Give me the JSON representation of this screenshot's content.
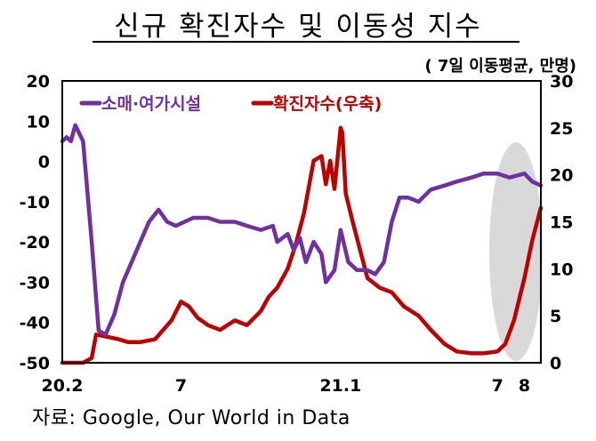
{
  "title": "신규 확진자수 및 이동성 지수",
  "unit_note": "( 7일 이동평균, 만명)",
  "source_note": "자료: Google, Our World in Data",
  "colors": {
    "mobility": "#7030A0",
    "cases": "#C00000",
    "highlight": "#D9D9D9"
  },
  "chart_data": {
    "type": "line",
    "x_tick_labels": [
      "20.2",
      "7",
      "21.1",
      "7",
      "8"
    ],
    "y_left": {
      "ticks": [
        "20",
        "10",
        "0",
        "-10",
        "-20",
        "-30",
        "-40",
        "-50"
      ],
      "range": [
        -50,
        20
      ]
    },
    "y_right": {
      "ticks": [
        "30",
        "25",
        "20",
        "15",
        "10",
        "5",
        "0"
      ],
      "range": [
        0,
        30
      ]
    },
    "grid": false,
    "legend_position": "top-left",
    "series": [
      {
        "name": "소매·여가시설",
        "axis": "left",
        "x": [
          "2020-02-15",
          "2020-02-20",
          "2020-02-25",
          "2020-03-01",
          "2020-03-10",
          "2020-03-20",
          "2020-03-28",
          "2020-04-05",
          "2020-04-15",
          "2020-04-25",
          "2020-05-05",
          "2020-05-15",
          "2020-05-25",
          "2020-06-05",
          "2020-06-15",
          "2020-06-25",
          "2020-07-05",
          "2020-07-15",
          "2020-08-01",
          "2020-08-15",
          "2020-09-01",
          "2020-09-15",
          "2020-10-01",
          "2020-10-15",
          "2020-10-20",
          "2020-11-01",
          "2020-11-08",
          "2020-11-15",
          "2020-11-22",
          "2020-12-01",
          "2020-12-10",
          "2020-12-15",
          "2020-12-25",
          "2021-01-01",
          "2021-01-10",
          "2021-01-20",
          "2021-02-01",
          "2021-02-10",
          "2021-02-20",
          "2021-03-01",
          "2021-03-10",
          "2021-03-20",
          "2021-04-01",
          "2021-04-15",
          "2021-05-01",
          "2021-05-15",
          "2021-06-01",
          "2021-06-15",
          "2021-07-01",
          "2021-07-15",
          "2021-08-01",
          "2021-08-10",
          "2021-08-20"
        ],
        "values": [
          5,
          6,
          5,
          9,
          5,
          -20,
          -42,
          -43,
          -38,
          -30,
          -25,
          -20,
          -15,
          -12,
          -15,
          -16,
          -15,
          -14,
          -14,
          -15,
          -15,
          -16,
          -17,
          -16,
          -20,
          -18,
          -22,
          -19,
          -25,
          -20,
          -23,
          -30,
          -27,
          -17,
          -25,
          -27,
          -27,
          -28,
          -25,
          -15,
          -9,
          -9,
          -10,
          -7,
          -6,
          -5,
          -4,
          -3,
          -3,
          -4,
          -3,
          -5,
          -6
        ]
      },
      {
        "name": "확진자수(우축)",
        "axis": "right",
        "x": [
          "2020-02-15",
          "2020-03-01",
          "2020-03-10",
          "2020-03-20",
          "2020-03-25",
          "2020-04-05",
          "2020-04-20",
          "2020-05-01",
          "2020-05-15",
          "2020-06-01",
          "2020-06-20",
          "2020-07-01",
          "2020-07-10",
          "2020-07-20",
          "2020-08-01",
          "2020-08-15",
          "2020-09-01",
          "2020-09-15",
          "2020-10-01",
          "2020-10-10",
          "2020-10-20",
          "2020-11-01",
          "2020-11-10",
          "2020-11-20",
          "2020-12-01",
          "2020-12-10",
          "2020-12-15",
          "2020-12-20",
          "2020-12-25",
          "2021-01-01",
          "2021-01-03",
          "2021-01-07",
          "2021-01-15",
          "2021-02-01",
          "2021-02-15",
          "2021-03-01",
          "2021-03-15",
          "2021-04-01",
          "2021-04-15",
          "2021-05-01",
          "2021-05-15",
          "2021-06-01",
          "2021-06-15",
          "2021-07-01",
          "2021-07-10",
          "2021-07-20",
          "2021-08-01",
          "2021-08-10",
          "2021-08-20"
        ],
        "values": [
          0,
          0,
          0,
          0.5,
          3,
          2.8,
          2.5,
          2.2,
          2.2,
          2.5,
          4.5,
          6.5,
          6.0,
          4.8,
          4.0,
          3.5,
          4.5,
          4.0,
          5.5,
          7.0,
          8.0,
          10.0,
          12.5,
          16.0,
          21.5,
          22.0,
          19.0,
          21.5,
          18.5,
          25.0,
          24.5,
          18.0,
          15.0,
          9.0,
          8.0,
          7.5,
          6.0,
          5.0,
          3.5,
          2.0,
          1.2,
          1.0,
          1.0,
          1.2,
          2.0,
          4.5,
          9.0,
          13.0,
          16.5
        ]
      }
    ]
  }
}
